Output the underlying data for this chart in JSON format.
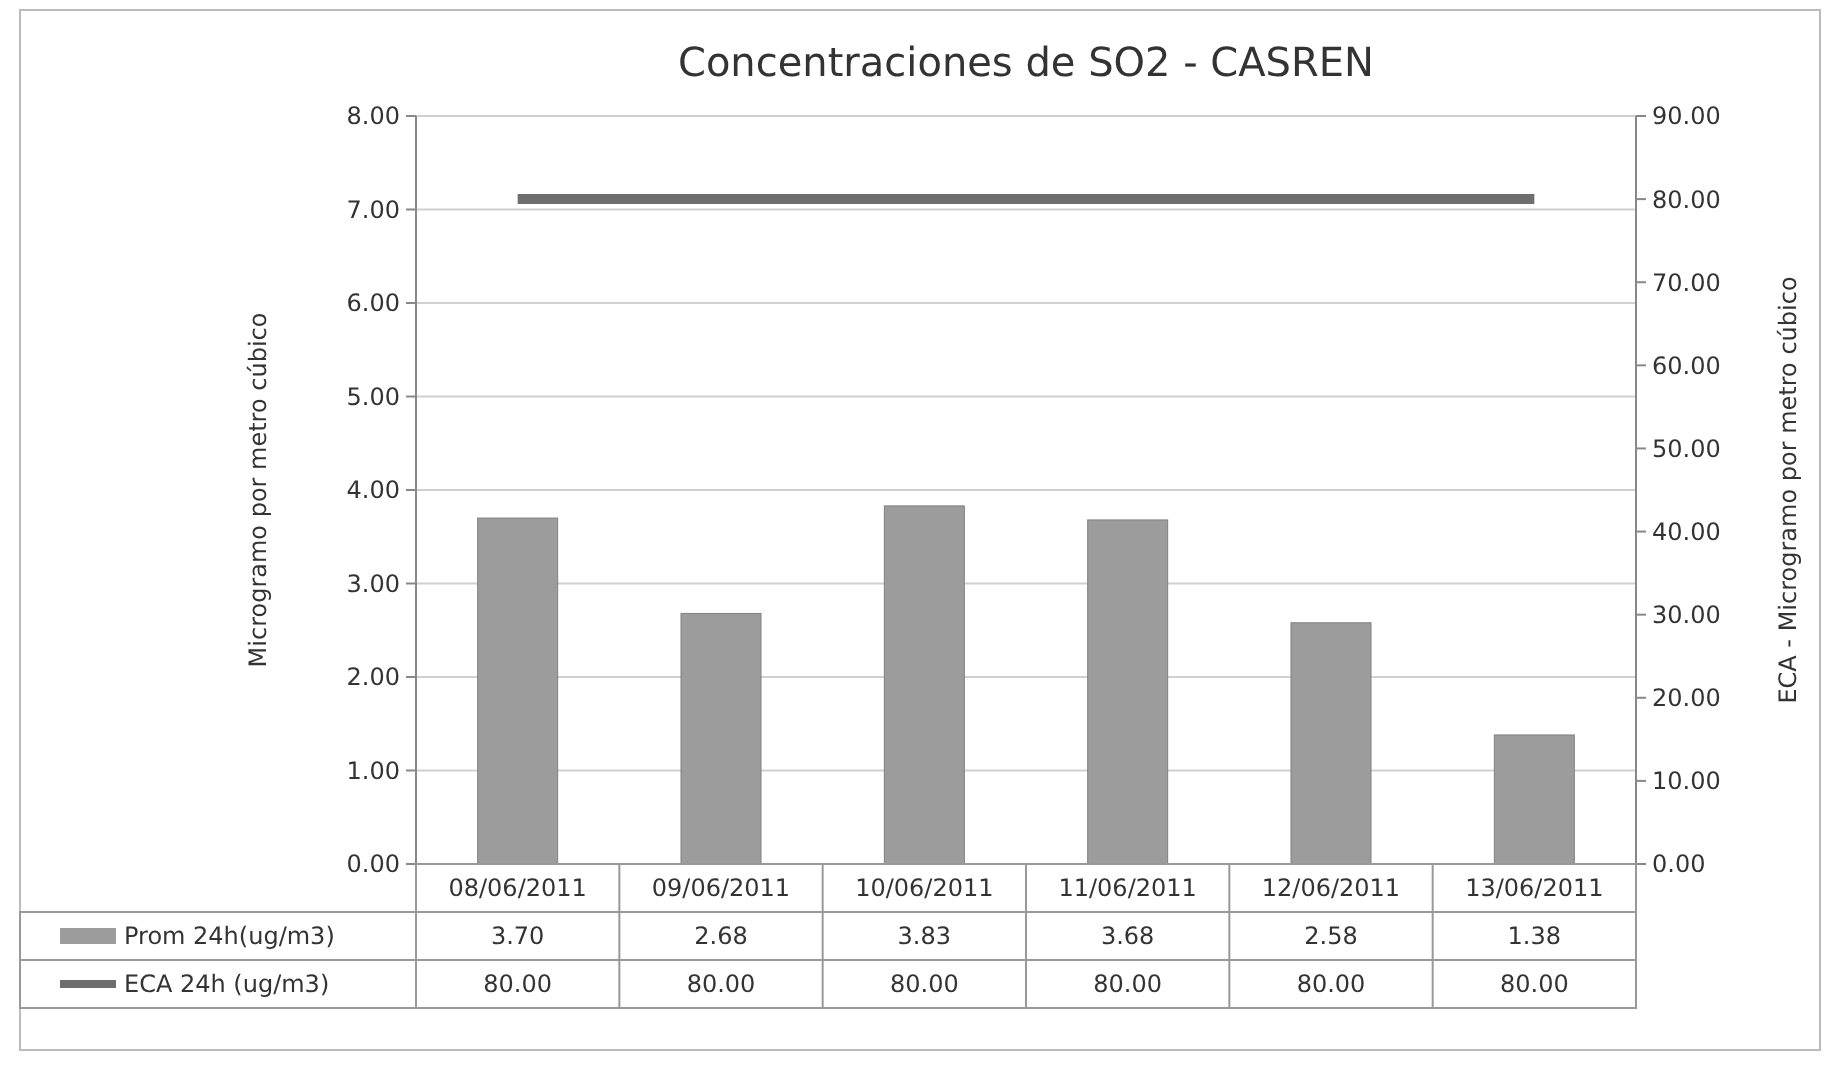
{
  "chart_data": {
    "type": "bar",
    "title": "Concentraciones de SO2 - CASREN",
    "ylabel": "Microgramo por metro cúbico",
    "y2label": "ECA - Microgramo por metro cúbico",
    "categories": [
      "08/06/2011",
      "09/06/2011",
      "10/06/2011",
      "11/06/2011",
      "12/06/2011",
      "13/06/2011"
    ],
    "series": [
      {
        "name": "Prom 24h(ug/m3)",
        "color": "#9c9c9c",
        "values": [
          3.7,
          2.68,
          3.83,
          3.68,
          2.58,
          1.38
        ],
        "value_labels": [
          "3.70",
          "2.68",
          "3.83",
          "3.68",
          "2.58",
          "1.38"
        ]
      },
      {
        "name": "ECA 24h (ug/m3)",
        "type": "line",
        "axis": "y2",
        "color": "#6e6e6e",
        "values": [
          80,
          80,
          80,
          80,
          80,
          80
        ],
        "value_labels": [
          "80.00",
          "80.00",
          "80.00",
          "80.00",
          "80.00",
          "80.00"
        ]
      }
    ],
    "ylim": [
      0,
      8
    ],
    "yticks": [
      {
        "value": 0,
        "label": "0.00"
      },
      {
        "value": 1,
        "label": "1.00"
      },
      {
        "value": 2,
        "label": "2.00"
      },
      {
        "value": 3,
        "label": "3.00"
      },
      {
        "value": 4,
        "label": "4.00"
      },
      {
        "value": 5,
        "label": "5.00"
      },
      {
        "value": 6,
        "label": "6.00"
      },
      {
        "value": 7,
        "label": "7.00"
      },
      {
        "value": 8,
        "label": "8.00"
      }
    ],
    "y2lim": [
      0,
      90
    ],
    "y2ticks": [
      {
        "value": 0,
        "label": "0.00"
      },
      {
        "value": 10,
        "label": "10.00"
      },
      {
        "value": 20,
        "label": "20.00"
      },
      {
        "value": 30,
        "label": "30.00"
      },
      {
        "value": 40,
        "label": "40.00"
      },
      {
        "value": 50,
        "label": "50.00"
      },
      {
        "value": 60,
        "label": "60.00"
      },
      {
        "value": 70,
        "label": "70.00"
      },
      {
        "value": 80,
        "label": "80.00"
      },
      {
        "value": 90,
        "label": "90.00"
      }
    ],
    "grid": "y",
    "legend": "bottom"
  }
}
